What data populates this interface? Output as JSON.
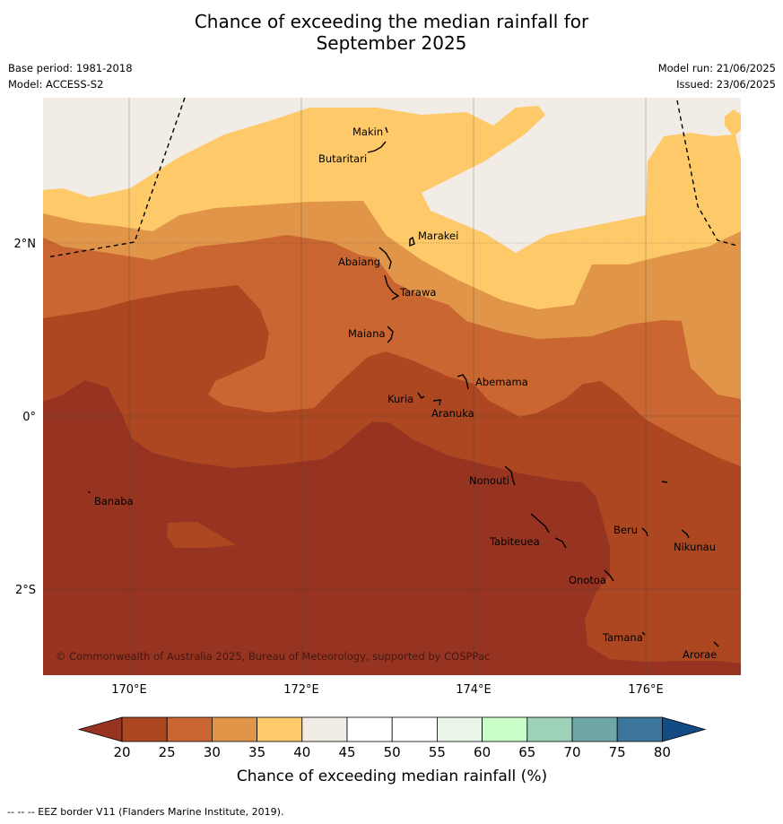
{
  "header": {
    "title_line1": "Chance of exceeding the median rainfall for",
    "title_line2": "September 2025",
    "base_period": "Base period: 1981-2018",
    "model": "Model: ACCESS-S2",
    "model_run": "Model run: 21/06/2025",
    "issued": "Issued: 23/06/2025"
  },
  "map": {
    "lon_ticks": [
      "170°E",
      "172°E",
      "174°E",
      "176°E"
    ],
    "lat_ticks": [
      "2°N",
      "0°",
      "2°S"
    ],
    "places": [
      "Makin",
      "Butaritari",
      "Marakei",
      "Abaiang",
      "Tarawa",
      "Maiana",
      "Abemama",
      "Kuria",
      "Aranuka",
      "Banaba",
      "Nonouti",
      "Beru",
      "Nikunau",
      "Tabiteuea",
      "Onotoa",
      "Tamana",
      "Arorae"
    ],
    "copyright": "© Commonwealth of Australia 2025, Bureau of Meteorology, supported by COSPPac"
  },
  "colorbar": {
    "ticks": [
      "20",
      "25",
      "30",
      "35",
      "40",
      "45",
      "50",
      "55",
      "60",
      "65",
      "70",
      "75",
      "80"
    ],
    "colors": [
      "#963421",
      "#ad4722",
      "#c96632",
      "#e09548",
      "#fec968",
      "#f1ece6",
      "#ffffff",
      "#ffffff",
      "#ebf5e9",
      "#caffc9",
      "#9dd2b8",
      "#6fa7a8",
      "#3d769c",
      "#134b84"
    ],
    "label": "Chance of exceeding median rainfall (%)"
  },
  "footer": "--  --  -- EEZ border V11 (Flanders Marine Institute, 2019)."
}
